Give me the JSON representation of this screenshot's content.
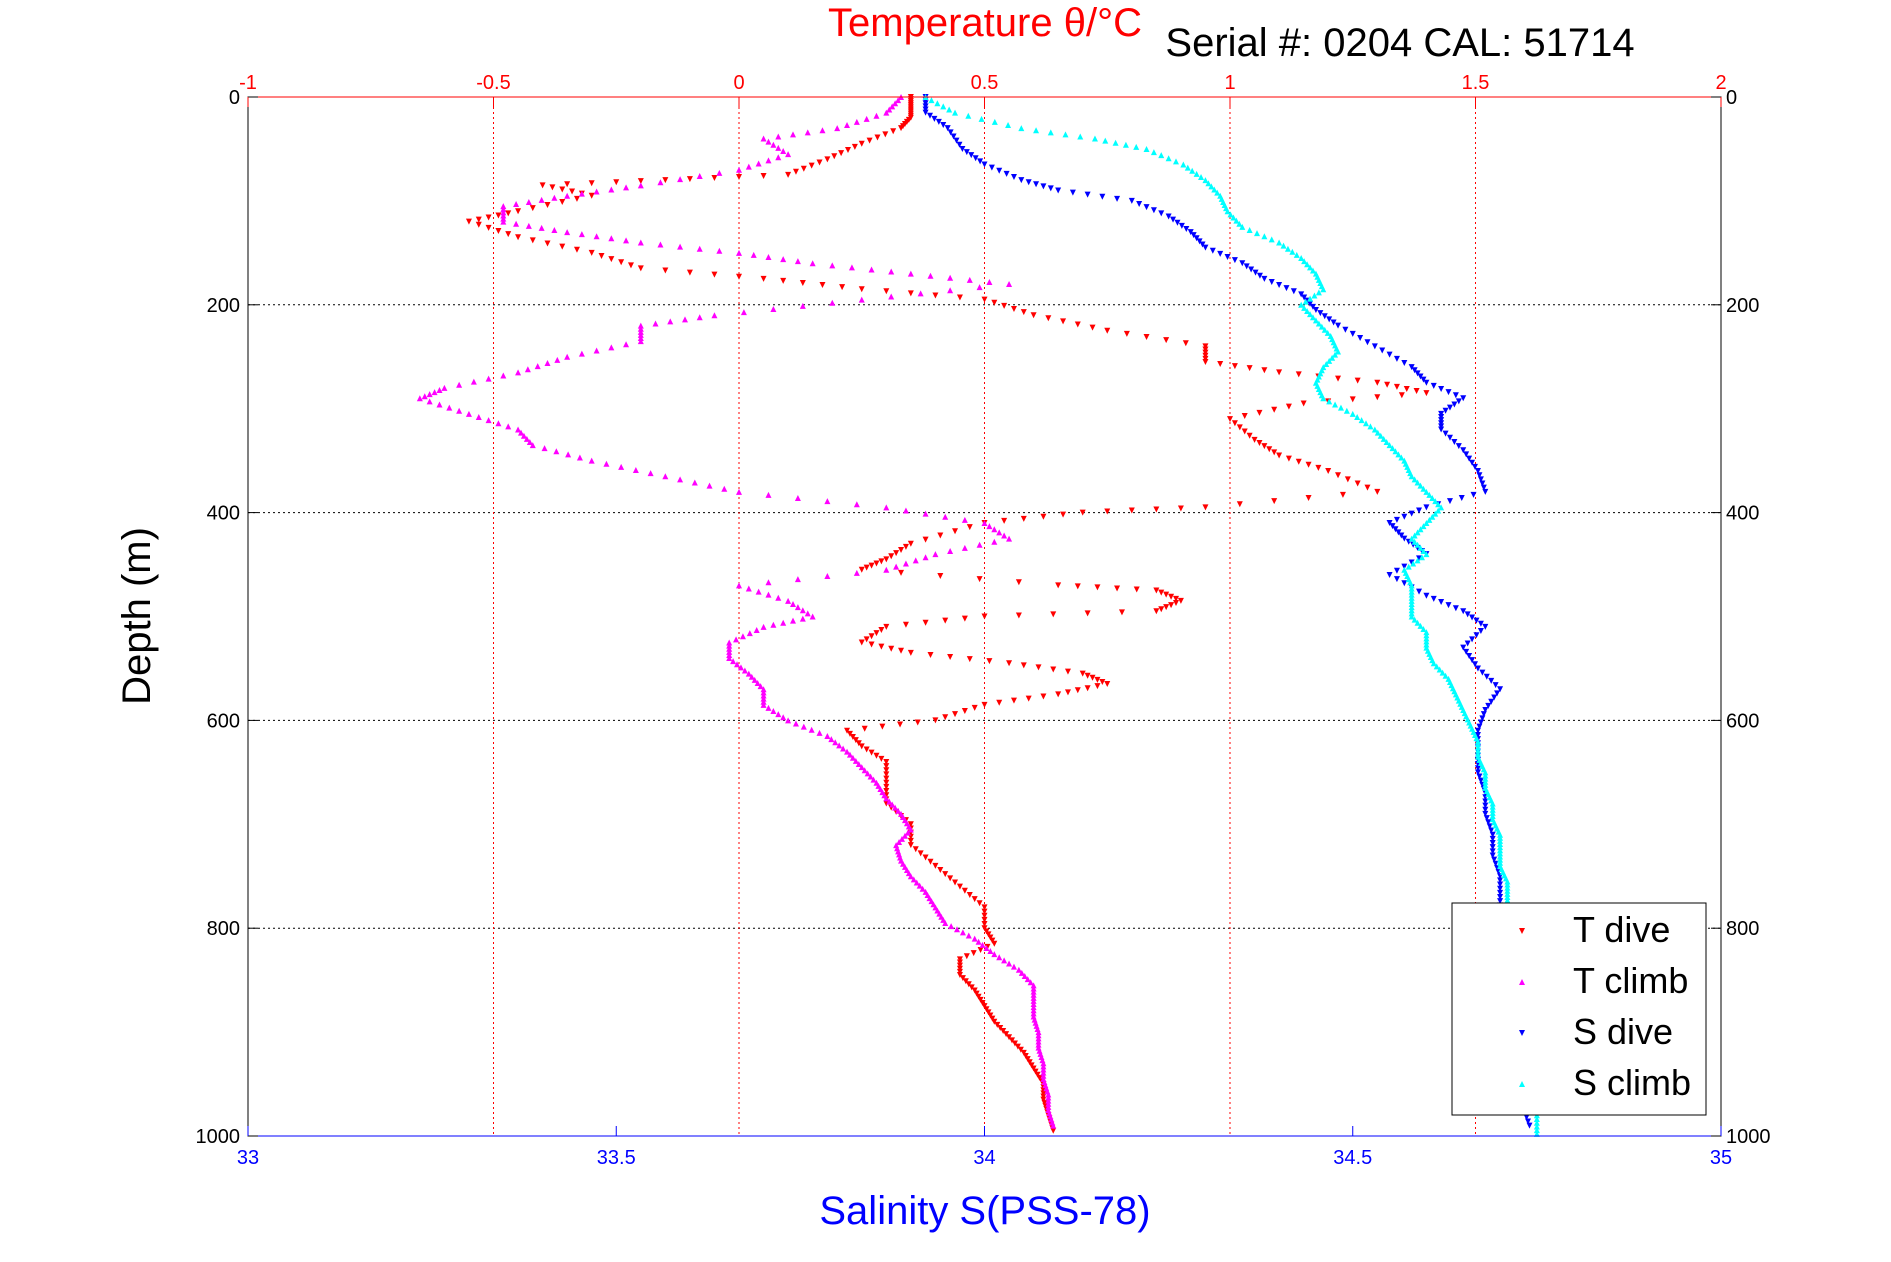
{
  "chart_data": {
    "type": "scatter",
    "title": "Temperature θ/°C",
    "subtitle": "Serial #: 0204  CAL: 51714",
    "ylabel": "Depth (m)",
    "xlabel_bottom": "Salinity S(PSS-78)",
    "xlabel_top": "Temperature θ/°C",
    "ylim": [
      0,
      1000
    ],
    "y_reversed": true,
    "x_bottom_lim": [
      33,
      35
    ],
    "x_top_lim": [
      -1,
      2
    ],
    "y_ticks": [
      "0",
      "200",
      "400",
      "600",
      "800",
      "1000"
    ],
    "x_bottom_ticks": [
      "33",
      "33.5",
      "34",
      "34.5",
      "35"
    ],
    "x_top_ticks": [
      "-1",
      "-0.5",
      "0",
      "0.5",
      "1",
      "1.5",
      "2"
    ],
    "grid": true,
    "legend_position": "bottom-right",
    "colors": {
      "t_dive": "#ff0000",
      "t_climb": "#ff00ff",
      "s_dive": "#0000ff",
      "s_climb": "#00ffff",
      "axis_bottom": "#0000ff",
      "axis_top": "#ff0000",
      "axis_left": "#000000",
      "grid": "#000000"
    },
    "series": [
      {
        "name": "T dive",
        "axis": "top",
        "color": "#ff0000",
        "marker": "triangle-down",
        "points": [
          [
            0.35,
            0
          ],
          [
            0.35,
            10
          ],
          [
            0.35,
            20
          ],
          [
            0.33,
            30
          ],
          [
            0.25,
            45
          ],
          [
            0.18,
            60
          ],
          [
            0.1,
            75
          ],
          [
            -0.15,
            80
          ],
          [
            -0.4,
            85
          ],
          [
            -0.3,
            95
          ],
          [
            -0.45,
            110
          ],
          [
            -0.55,
            120
          ],
          [
            -0.45,
            135
          ],
          [
            -0.3,
            150
          ],
          [
            -0.2,
            165
          ],
          [
            0.05,
            175
          ],
          [
            0.25,
            185
          ],
          [
            0.5,
            195
          ],
          [
            0.6,
            210
          ],
          [
            0.75,
            225
          ],
          [
            0.95,
            240
          ],
          [
            0.95,
            255
          ],
          [
            1.1,
            265
          ],
          [
            1.3,
            275
          ],
          [
            1.4,
            285
          ],
          [
            1.15,
            295
          ],
          [
            1.0,
            310
          ],
          [
            1.05,
            330
          ],
          [
            1.1,
            345
          ],
          [
            1.2,
            360
          ],
          [
            1.3,
            380
          ],
          [
            0.95,
            395
          ],
          [
            0.7,
            400
          ],
          [
            0.5,
            410
          ],
          [
            0.35,
            430
          ],
          [
            0.3,
            445
          ],
          [
            0.25,
            455
          ],
          [
            0.65,
            470
          ],
          [
            0.85,
            475
          ],
          [
            0.9,
            485
          ],
          [
            0.85,
            495
          ],
          [
            0.5,
            500
          ],
          [
            0.3,
            510
          ],
          [
            0.25,
            525
          ],
          [
            0.35,
            535
          ],
          [
            0.55,
            545
          ],
          [
            0.7,
            555
          ],
          [
            0.75,
            565
          ],
          [
            0.65,
            575
          ],
          [
            0.5,
            585
          ],
          [
            0.4,
            600
          ],
          [
            0.22,
            610
          ],
          [
            0.25,
            625
          ],
          [
            0.3,
            640
          ],
          [
            0.3,
            660
          ],
          [
            0.3,
            680
          ],
          [
            0.35,
            700
          ],
          [
            0.35,
            720
          ],
          [
            0.4,
            740
          ],
          [
            0.45,
            760
          ],
          [
            0.5,
            780
          ],
          [
            0.5,
            800
          ],
          [
            0.52,
            815
          ],
          [
            0.45,
            830
          ],
          [
            0.45,
            845
          ],
          [
            0.48,
            860
          ],
          [
            0.5,
            875
          ],
          [
            0.52,
            890
          ],
          [
            0.55,
            905
          ],
          [
            0.58,
            920
          ],
          [
            0.6,
            935
          ],
          [
            0.62,
            950
          ],
          [
            0.62,
            965
          ],
          [
            0.63,
            980
          ],
          [
            0.64,
            995
          ]
        ]
      },
      {
        "name": "T climb",
        "axis": "top",
        "color": "#ff00ff",
        "marker": "triangle-up",
        "points": [
          [
            0.33,
            0
          ],
          [
            0.3,
            15
          ],
          [
            0.2,
            30
          ],
          [
            0.05,
            40
          ],
          [
            0.1,
            55
          ],
          [
            0.0,
            70
          ],
          [
            -0.2,
            85
          ],
          [
            -0.35,
            95
          ],
          [
            -0.48,
            105
          ],
          [
            -0.48,
            120
          ],
          [
            -0.35,
            130
          ],
          [
            -0.2,
            140
          ],
          [
            0.0,
            150
          ],
          [
            0.15,
            160
          ],
          [
            0.35,
            170
          ],
          [
            0.55,
            180
          ],
          [
            0.25,
            195
          ],
          [
            -0.05,
            210
          ],
          [
            -0.2,
            220
          ],
          [
            -0.2,
            235
          ],
          [
            -0.35,
            250
          ],
          [
            -0.45,
            265
          ],
          [
            -0.6,
            280
          ],
          [
            -0.65,
            290
          ],
          [
            -0.55,
            305
          ],
          [
            -0.45,
            320
          ],
          [
            -0.42,
            335
          ],
          [
            -0.3,
            350
          ],
          [
            -0.15,
            365
          ],
          [
            0.0,
            380
          ],
          [
            0.3,
            395
          ],
          [
            0.5,
            410
          ],
          [
            0.55,
            425
          ],
          [
            0.4,
            440
          ],
          [
            0.3,
            455
          ],
          [
            0.0,
            470
          ],
          [
            0.1,
            485
          ],
          [
            0.15,
            500
          ],
          [
            0.05,
            510
          ],
          [
            -0.02,
            525
          ],
          [
            -0.02,
            540
          ],
          [
            0.02,
            555
          ],
          [
            0.05,
            570
          ],
          [
            0.05,
            585
          ],
          [
            0.1,
            600
          ],
          [
            0.18,
            615
          ],
          [
            0.22,
            630
          ],
          [
            0.25,
            645
          ],
          [
            0.28,
            660
          ],
          [
            0.3,
            675
          ],
          [
            0.33,
            690
          ],
          [
            0.35,
            705
          ],
          [
            0.32,
            720
          ],
          [
            0.33,
            735
          ],
          [
            0.35,
            750
          ],
          [
            0.38,
            765
          ],
          [
            0.4,
            780
          ],
          [
            0.42,
            795
          ],
          [
            0.48,
            810
          ],
          [
            0.52,
            825
          ],
          [
            0.57,
            840
          ],
          [
            0.6,
            855
          ],
          [
            0.6,
            870
          ],
          [
            0.6,
            885
          ],
          [
            0.61,
            900
          ],
          [
            0.61,
            915
          ],
          [
            0.62,
            930
          ],
          [
            0.62,
            945
          ],
          [
            0.63,
            960
          ],
          [
            0.63,
            975
          ],
          [
            0.64,
            990
          ]
        ]
      },
      {
        "name": "S dive",
        "axis": "bottom",
        "color": "#0000ff",
        "marker": "triangle-down",
        "points": [
          [
            33.92,
            0
          ],
          [
            33.92,
            15
          ],
          [
            33.95,
            30
          ],
          [
            33.97,
            50
          ],
          [
            34.0,
            65
          ],
          [
            34.05,
            80
          ],
          [
            34.1,
            90
          ],
          [
            34.2,
            100
          ],
          [
            34.25,
            115
          ],
          [
            34.28,
            130
          ],
          [
            34.3,
            145
          ],
          [
            34.35,
            160
          ],
          [
            34.38,
            175
          ],
          [
            34.43,
            190
          ],
          [
            34.45,
            205
          ],
          [
            34.48,
            220
          ],
          [
            34.53,
            240
          ],
          [
            34.58,
            260
          ],
          [
            34.6,
            275
          ],
          [
            34.65,
            290
          ],
          [
            34.62,
            305
          ],
          [
            34.62,
            320
          ],
          [
            34.65,
            340
          ],
          [
            34.67,
            360
          ],
          [
            34.68,
            380
          ],
          [
            34.6,
            395
          ],
          [
            34.55,
            410
          ],
          [
            34.57,
            425
          ],
          [
            34.6,
            440
          ],
          [
            34.55,
            460
          ],
          [
            34.6,
            480
          ],
          [
            34.65,
            495
          ],
          [
            34.68,
            510
          ],
          [
            34.65,
            530
          ],
          [
            34.67,
            550
          ],
          [
            34.7,
            570
          ],
          [
            34.68,
            590
          ],
          [
            34.67,
            610
          ],
          [
            34.67,
            630
          ],
          [
            34.67,
            650
          ],
          [
            34.68,
            670
          ],
          [
            34.68,
            690
          ],
          [
            34.69,
            710
          ],
          [
            34.69,
            730
          ],
          [
            34.7,
            750
          ],
          [
            34.7,
            770
          ],
          [
            34.7,
            790
          ],
          [
            34.7,
            810
          ],
          [
            34.71,
            830
          ],
          [
            34.71,
            850
          ],
          [
            34.72,
            870
          ],
          [
            34.72,
            890
          ],
          [
            34.72,
            910
          ],
          [
            34.73,
            930
          ],
          [
            34.73,
            950
          ],
          [
            34.73,
            970
          ],
          [
            34.74,
            990
          ]
        ]
      },
      {
        "name": "S climb",
        "axis": "bottom",
        "color": "#00ffff",
        "marker": "triangle-up",
        "points": [
          [
            33.92,
            0
          ],
          [
            33.96,
            15
          ],
          [
            34.05,
            30
          ],
          [
            34.15,
            40
          ],
          [
            34.22,
            50
          ],
          [
            34.27,
            65
          ],
          [
            34.3,
            80
          ],
          [
            34.32,
            95
          ],
          [
            34.33,
            110
          ],
          [
            34.35,
            125
          ],
          [
            34.4,
            140
          ],
          [
            34.43,
            155
          ],
          [
            34.45,
            170
          ],
          [
            34.46,
            185
          ],
          [
            34.43,
            200
          ],
          [
            34.45,
            215
          ],
          [
            34.47,
            230
          ],
          [
            34.48,
            245
          ],
          [
            34.46,
            260
          ],
          [
            34.45,
            275
          ],
          [
            34.46,
            290
          ],
          [
            34.5,
            305
          ],
          [
            34.53,
            320
          ],
          [
            34.55,
            335
          ],
          [
            34.57,
            350
          ],
          [
            34.58,
            365
          ],
          [
            34.6,
            380
          ],
          [
            34.62,
            395
          ],
          [
            34.6,
            410
          ],
          [
            34.58,
            425
          ],
          [
            34.6,
            440
          ],
          [
            34.57,
            455
          ],
          [
            34.58,
            470
          ],
          [
            34.58,
            485
          ],
          [
            34.58,
            500
          ],
          [
            34.6,
            515
          ],
          [
            34.6,
            530
          ],
          [
            34.61,
            545
          ],
          [
            34.63,
            560
          ],
          [
            34.64,
            575
          ],
          [
            34.65,
            590
          ],
          [
            34.66,
            605
          ],
          [
            34.67,
            620
          ],
          [
            34.67,
            635
          ],
          [
            34.68,
            650
          ],
          [
            34.68,
            665
          ],
          [
            34.69,
            680
          ],
          [
            34.69,
            695
          ],
          [
            34.7,
            710
          ],
          [
            34.7,
            725
          ],
          [
            34.7,
            740
          ],
          [
            34.71,
            755
          ],
          [
            34.71,
            770
          ],
          [
            34.71,
            785
          ],
          [
            34.72,
            800
          ],
          [
            34.72,
            820
          ],
          [
            34.72,
            840
          ],
          [
            34.73,
            860
          ],
          [
            34.73,
            880
          ],
          [
            34.73,
            900
          ],
          [
            34.74,
            920
          ],
          [
            34.74,
            940
          ],
          [
            34.74,
            960
          ],
          [
            34.75,
            980
          ],
          [
            34.75,
            998
          ]
        ]
      }
    ]
  }
}
